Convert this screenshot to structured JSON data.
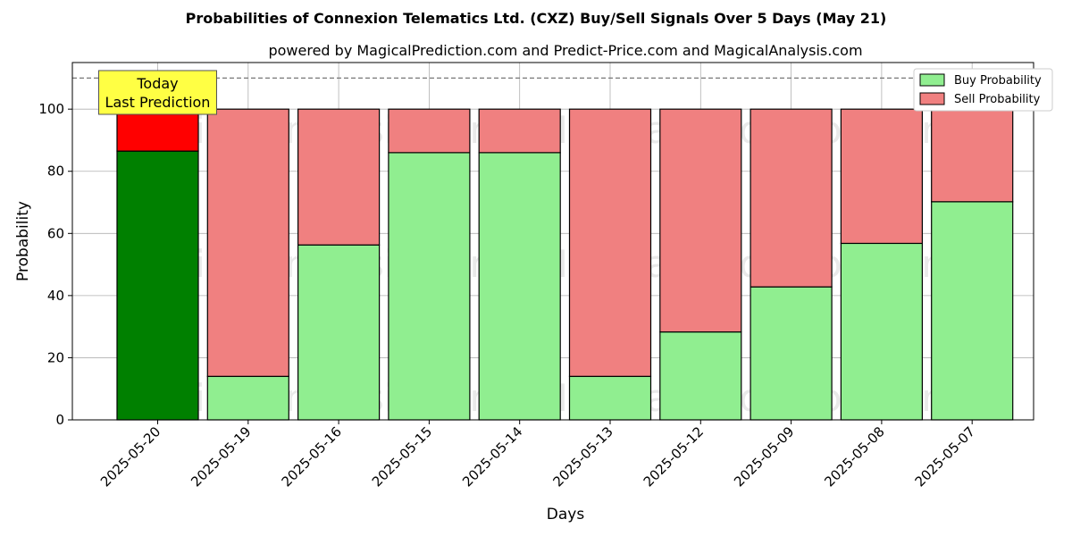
{
  "chart_data": {
    "type": "bar",
    "stacked": true,
    "title": "Probabilities of Connexion Telematics Ltd. (CXZ) Buy/Sell Signals Over 5 Days (May 21)",
    "subtitle": "powered by MagicalPrediction.com and Predict-Price.com and MagicalAnalysis.com",
    "xlabel": "Days",
    "ylabel": "Probability",
    "ylim": [
      0,
      115
    ],
    "yticks": [
      0,
      20,
      40,
      60,
      80,
      100
    ],
    "reference_line": 110,
    "grid": true,
    "legend_position": "top-right",
    "categories": [
      "2025-05-20",
      "2025-05-19",
      "2025-05-16",
      "2025-05-15",
      "2025-05-14",
      "2025-05-13",
      "2025-05-12",
      "2025-05-09",
      "2025-05-08",
      "2025-05-07"
    ],
    "series": [
      {
        "name": "Buy Probability",
        "values": [
          86.5,
          14.0,
          56.3,
          86.0,
          86.0,
          14.0,
          28.3,
          42.8,
          56.8,
          70.2
        ]
      },
      {
        "name": "Sell Probability",
        "values": [
          13.5,
          86.0,
          43.7,
          14.0,
          14.0,
          86.0,
          71.7,
          57.2,
          43.2,
          29.8
        ]
      }
    ],
    "annotation": {
      "line1": "Today",
      "line2": "Last Prediction",
      "category_index": 0
    },
    "highlight_index": 0
  },
  "colors": {
    "buy": "#90ee90",
    "sell": "#f08080",
    "buy_highlight": "#008000",
    "sell_highlight": "#ff0000",
    "annotation_bg": "#ffff44"
  },
  "watermarks": [
    "MagicalAnalysis.com",
    "MagicalPrediction.com"
  ]
}
